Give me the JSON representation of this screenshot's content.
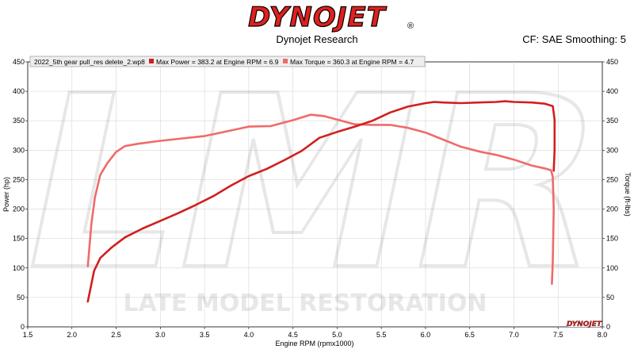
{
  "header": {
    "brand": "DYNOJET",
    "registered_mark": "®",
    "subtitle": "Dynojet Research",
    "correction_info": "CF: SAE Smoothing: 5"
  },
  "watermark": {
    "monogram": "LMR",
    "text": "LATE MODEL RESTORATION"
  },
  "colors": {
    "power": "#d11f1f",
    "torque": "#f06a6a",
    "brand_red": "#e0201e",
    "grid": "#d7d7d7"
  },
  "chart_data": {
    "type": "line",
    "xlabel": "Engine RPM (rpmx1000)",
    "ylabel_left": "Power (hp)",
    "ylabel_right": "Torque (ft-lbs)",
    "xlim": [
      1.5,
      8.0
    ],
    "ylim": [
      0,
      450
    ],
    "x_ticks": [
      "1.5",
      "2.0",
      "2.5",
      "3.0",
      "3.5",
      "4.0",
      "4.5",
      "5.0",
      "5.5",
      "6.0",
      "6.5",
      "7.0",
      "7.5",
      "8.0"
    ],
    "y_ticks": [
      "0",
      "50",
      "100",
      "150",
      "200",
      "250",
      "300",
      "350",
      "400",
      "450"
    ],
    "grid": true,
    "legend_position": "top-left",
    "legend_file": "2022_5th gear pull_res delete_2.wp8",
    "series": [
      {
        "name": "Max Power = 383.2 at Engine RPM = 6.9",
        "color": "#d11f1f",
        "x": [
          2.18,
          2.25,
          2.32,
          2.45,
          2.6,
          2.8,
          3.0,
          3.2,
          3.4,
          3.6,
          3.8,
          4.0,
          4.2,
          4.4,
          4.6,
          4.8,
          5.0,
          5.2,
          5.4,
          5.6,
          5.8,
          6.0,
          6.1,
          6.2,
          6.4,
          6.6,
          6.8,
          6.9,
          7.0,
          7.2,
          7.35,
          7.44,
          7.46,
          7.46,
          7.45
        ],
        "y": [
          43,
          95,
          117,
          135,
          152,
          167,
          180,
          193,
          207,
          222,
          240,
          256,
          268,
          283,
          299,
          321,
          331,
          340,
          350,
          364,
          374,
          380,
          382,
          381,
          380,
          381,
          382,
          383.2,
          382,
          381,
          379,
          375,
          352,
          300,
          265
        ]
      },
      {
        "name": "Max Torque = 360.3 at Engine RPM = 4.7",
        "color": "#f06a6a",
        "x": [
          2.18,
          2.22,
          2.26,
          2.32,
          2.4,
          2.5,
          2.6,
          2.75,
          3.0,
          3.25,
          3.5,
          3.75,
          4.0,
          4.25,
          4.5,
          4.7,
          4.85,
          5.0,
          5.2,
          5.4,
          5.6,
          5.8,
          6.0,
          6.2,
          6.4,
          6.6,
          6.8,
          7.0,
          7.2,
          7.35,
          7.42,
          7.44,
          7.45,
          7.44,
          7.43
        ],
        "y": [
          103,
          175,
          220,
          258,
          278,
          297,
          307,
          311,
          316,
          320,
          324,
          332,
          340,
          341,
          351,
          360.3,
          358,
          352,
          344,
          343,
          343,
          338,
          330,
          318,
          306,
          298,
          292,
          284,
          274,
          269,
          266,
          255,
          200,
          110,
          73
        ]
      }
    ]
  }
}
